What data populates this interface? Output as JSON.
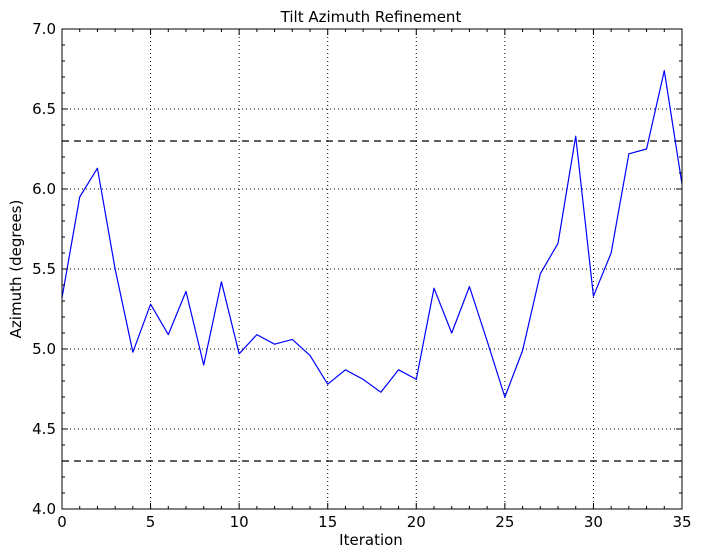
{
  "chart_data": {
    "type": "line",
    "title": "Tilt Azimuth Refinement",
    "xlabel": "Iteration",
    "ylabel": "Azimuth (degrees)",
    "xlim": [
      0,
      35
    ],
    "ylim": [
      4.0,
      7.0
    ],
    "xticks": [
      0,
      5,
      10,
      15,
      20,
      25,
      30,
      35
    ],
    "yticks": [
      4.0,
      4.5,
      5.0,
      5.5,
      6.0,
      6.5,
      7.0
    ],
    "xtick_labels": [
      "0",
      "5",
      "10",
      "15",
      "20",
      "25",
      "30",
      "35"
    ],
    "ytick_labels": [
      "4.0",
      "4.5",
      "5.0",
      "5.5",
      "6.0",
      "6.5",
      "7.0"
    ],
    "grid": true,
    "legend": "none",
    "series": [
      {
        "color": "#0000ff",
        "x": [
          0,
          1,
          2,
          3,
          4,
          5,
          6,
          7,
          8,
          9,
          10,
          11,
          12,
          13,
          14,
          15,
          16,
          17,
          18,
          19,
          20,
          21,
          22,
          23,
          24,
          25,
          26,
          27,
          28,
          29,
          30,
          31,
          32,
          33,
          34,
          35
        ],
        "values": [
          5.32,
          5.95,
          6.13,
          5.5,
          4.98,
          5.28,
          5.09,
          5.36,
          4.9,
          5.42,
          4.97,
          5.09,
          5.03,
          5.06,
          4.96,
          4.78,
          4.87,
          4.81,
          4.73,
          4.87,
          4.81,
          5.38,
          5.1,
          5.39,
          5.05,
          4.7,
          4.99,
          5.47,
          5.66,
          6.33,
          5.33,
          5.6,
          6.22,
          6.25,
          6.74,
          6.03
        ]
      }
    ],
    "reference_lines": [
      {
        "y": 6.3,
        "style": "dashed",
        "color": "#000000"
      },
      {
        "y": 4.3,
        "style": "dashed",
        "color": "#000000"
      }
    ]
  }
}
